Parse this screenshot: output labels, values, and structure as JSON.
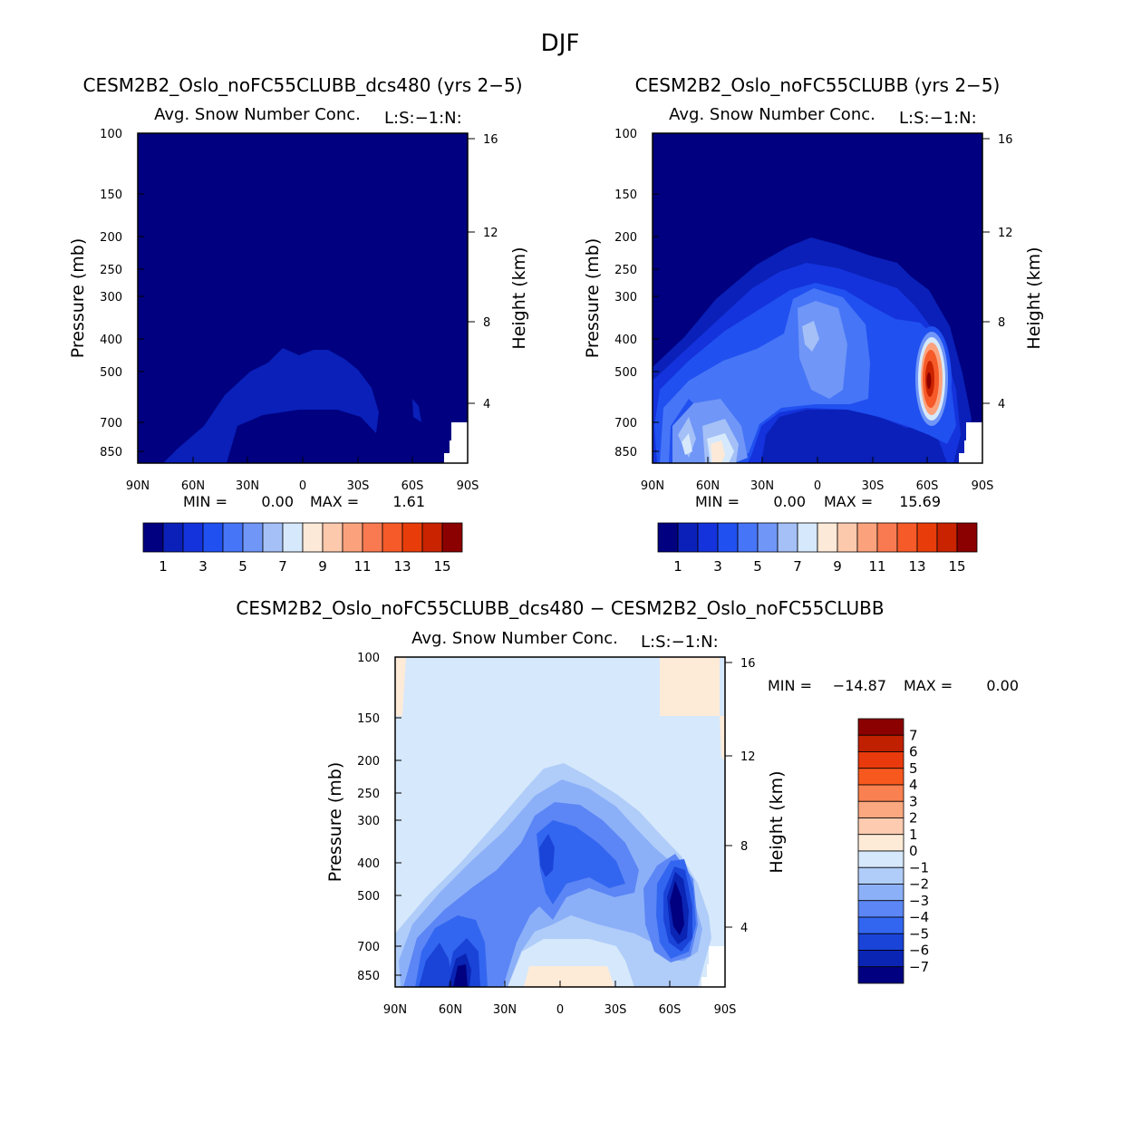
{
  "figure": {
    "title": "DJF"
  },
  "chart_data": [
    {
      "type": "contour",
      "title": "CESM2B2_Oslo_noFC55CLUBB_dcs480 (yrs 2−5)",
      "subtitle": "Avg. Snow Number Conc.",
      "units": "L:S:−1:N:",
      "ylabel": "Pressure (mb)",
      "ylabel_right": "Height (km)",
      "x_ticks": [
        "90N",
        "60N",
        "30N",
        "0",
        "30S",
        "60S",
        "90S"
      ],
      "x_range": [
        90,
        -90
      ],
      "y_ticks": [
        "100",
        "150",
        "200",
        "250",
        "300",
        "400",
        "500",
        "700",
        "850"
      ],
      "y_range_mb": [
        1000,
        100
      ],
      "height_ticks": [
        "16",
        "12",
        "8",
        "4"
      ],
      "stats": {
        "min_label": "MIN =",
        "min": "0.00",
        "max_label": "MAX =",
        "max": "1.61"
      },
      "colorbar": {
        "orientation": "horizontal",
        "labels": [
          "1",
          "3",
          "5",
          "7",
          "9",
          "11",
          "13",
          "15"
        ],
        "colors": [
          "#000080",
          "#0a20b8",
          "#1433dc",
          "#2050f0",
          "#4675f7",
          "#7096f7",
          "#a4c0f7",
          "#d6e8fb",
          "#fde9d7",
          "#fcc9ad",
          "#fba27d",
          "#f97a50",
          "#f55a28",
          "#e83d0b",
          "#c92300",
          "#8b0000"
        ]
      }
    },
    {
      "type": "contour",
      "title": "CESM2B2_Oslo_noFC55CLUBB (yrs 2−5)",
      "subtitle": "Avg. Snow Number Conc.",
      "units": "L:S:−1:N:",
      "ylabel": "Pressure (mb)",
      "ylabel_right": "Height (km)",
      "x_ticks": [
        "90N",
        "60N",
        "30N",
        "0",
        "30S",
        "60S",
        "90S"
      ],
      "x_range": [
        90,
        -90
      ],
      "y_ticks": [
        "100",
        "150",
        "200",
        "250",
        "300",
        "400",
        "500",
        "700",
        "850"
      ],
      "y_range_mb": [
        1000,
        100
      ],
      "height_ticks": [
        "16",
        "12",
        "8",
        "4"
      ],
      "stats": {
        "min_label": "MIN =",
        "min": "0.00",
        "max_label": "MAX =",
        "max": "15.69"
      },
      "colorbar": {
        "orientation": "horizontal",
        "labels": [
          "1",
          "3",
          "5",
          "7",
          "9",
          "11",
          "13",
          "15"
        ],
        "colors": [
          "#000080",
          "#0a20b8",
          "#1433dc",
          "#2050f0",
          "#4675f7",
          "#7096f7",
          "#a4c0f7",
          "#d6e8fb",
          "#fde9d7",
          "#fcc9ad",
          "#fba27d",
          "#f97a50",
          "#f55a28",
          "#e83d0b",
          "#c92300",
          "#8b0000"
        ]
      }
    },
    {
      "type": "contour",
      "title": "CESM2B2_Oslo_noFC55CLUBB_dcs480 − CESM2B2_Oslo_noFC55CLUBB",
      "subtitle": "Avg. Snow Number Conc.",
      "units": "L:S:−1:N:",
      "ylabel": "Pressure (mb)",
      "ylabel_right": "Height (km)",
      "x_ticks": [
        "90N",
        "60N",
        "30N",
        "0",
        "30S",
        "60S",
        "90S"
      ],
      "x_range": [
        90,
        -90
      ],
      "y_ticks": [
        "100",
        "150",
        "200",
        "250",
        "300",
        "400",
        "500",
        "700",
        "850"
      ],
      "y_range_mb": [
        1000,
        100
      ],
      "height_ticks": [
        "16",
        "12",
        "8",
        "4"
      ],
      "stats": {
        "min_label": "MIN =",
        "min": "−14.87",
        "max_label": "MAX =",
        "max": "0.00"
      },
      "colorbar": {
        "orientation": "vertical",
        "labels": [
          "7",
          "6",
          "5",
          "4",
          "3",
          "2",
          "1",
          "0",
          "−1",
          "−2",
          "−3",
          "−4",
          "−5",
          "−6",
          "−7"
        ],
        "colors": [
          "#8b0000",
          "#c02000",
          "#e83a0c",
          "#f7581e",
          "#f98050",
          "#fba77f",
          "#fdcbb0",
          "#fdebd8",
          "#d6e8fb",
          "#b0cdf9",
          "#8cb0f8",
          "#5c86f5",
          "#3366f0",
          "#1a44d8",
          "#0a24b4",
          "#000080"
        ]
      }
    }
  ]
}
